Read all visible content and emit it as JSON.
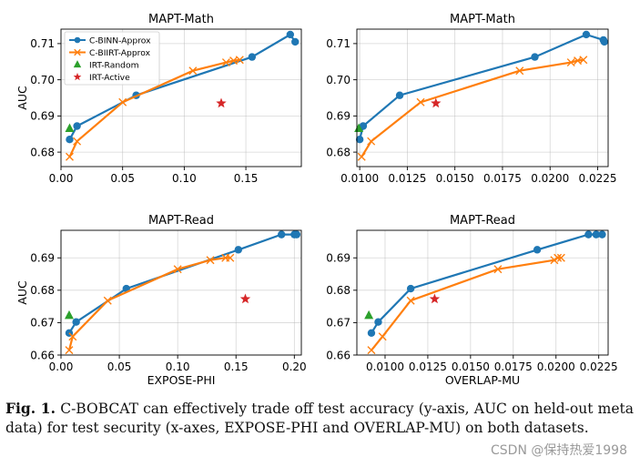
{
  "colors": {
    "binn": "#1f77b4",
    "biirt": "#ff7f0e",
    "random": "#2ca02c",
    "active": "#d62728"
  },
  "legend": {
    "items": [
      {
        "label": "C-BINN-Approx",
        "marker": "circle",
        "color": "#1f77b4"
      },
      {
        "label": "C-BIIRT-Approx",
        "marker": "x",
        "color": "#ff7f0e"
      },
      {
        "label": "IRT-Random",
        "marker": "triangle",
        "color": "#2ca02c"
      },
      {
        "label": "IRT-Active",
        "marker": "star",
        "color": "#d62728"
      }
    ],
    "placement": "upper-left of first panel"
  },
  "chart_data": [
    {
      "type": "line",
      "title": "MAPT-Math",
      "xlabel": "",
      "ylabel": "AUC",
      "xlim": [
        0.0,
        0.195
      ],
      "ylim": [
        0.676,
        0.714
      ],
      "xticks": [
        0.0,
        0.05,
        0.1,
        0.15
      ],
      "xtick_labels": [
        "0.00",
        "0.05",
        "0.10",
        "0.15"
      ],
      "yticks": [
        0.68,
        0.69,
        0.7,
        0.71
      ],
      "ytick_labels": [
        "0.68",
        "0.69",
        "0.70",
        "0.71"
      ],
      "grid": true,
      "series": [
        {
          "name": "C-BINN-Approx",
          "marker": "circle",
          "color": "#1f77b4",
          "x": [
            0.007,
            0.013,
            0.061,
            0.155,
            0.186,
            0.19
          ],
          "y": [
            0.6835,
            0.6872,
            0.6957,
            0.7063,
            0.7125,
            0.7105
          ]
        },
        {
          "name": "C-BIIRT-Approx",
          "marker": "x",
          "color": "#ff7f0e",
          "x": [
            0.007,
            0.013,
            0.05,
            0.107,
            0.134,
            0.14,
            0.145
          ],
          "y": [
            0.6787,
            0.683,
            0.6938,
            0.7025,
            0.7048,
            0.7053,
            0.7055
          ]
        },
        {
          "name": "IRT-Random",
          "marker": "triangle",
          "color": "#2ca02c",
          "x": [
            0.007
          ],
          "y": [
            0.6865
          ]
        },
        {
          "name": "IRT-Active",
          "marker": "star",
          "color": "#d62728",
          "x": [
            0.13
          ],
          "y": [
            0.6935
          ]
        }
      ]
    },
    {
      "type": "line",
      "title": "MAPT-Math",
      "xlabel": "",
      "ylabel": "",
      "xlim": [
        0.00985,
        0.02305
      ],
      "ylim": [
        0.676,
        0.714
      ],
      "xticks": [
        0.01,
        0.0125,
        0.015,
        0.0175,
        0.02,
        0.0225
      ],
      "xtick_labels": [
        "0.0100",
        "0.0125",
        "0.0150",
        "0.0175",
        "0.0200",
        "0.0225"
      ],
      "yticks": [
        0.68,
        0.69,
        0.7,
        0.71
      ],
      "ytick_labels": [
        "0.68",
        "0.69",
        "0.70",
        "0.71"
      ],
      "grid": true,
      "series": [
        {
          "name": "C-BINN-Approx",
          "marker": "circle",
          "color": "#1f77b4",
          "x": [
            0.01,
            0.01018,
            0.0121,
            0.0192,
            0.0219,
            0.0228,
            0.02285
          ],
          "y": [
            0.6835,
            0.6872,
            0.6957,
            0.7063,
            0.7125,
            0.711,
            0.7105
          ]
        },
        {
          "name": "C-BIIRT-Approx",
          "marker": "x",
          "color": "#ff7f0e",
          "x": [
            0.0101,
            0.0106,
            0.0132,
            0.0184,
            0.0211,
            0.02145,
            0.02175
          ],
          "y": [
            0.6787,
            0.683,
            0.6938,
            0.7025,
            0.7048,
            0.7053,
            0.7055
          ]
        },
        {
          "name": "IRT-Random",
          "marker": "triangle",
          "color": "#2ca02c",
          "x": [
            0.00995
          ],
          "y": [
            0.6865
          ]
        },
        {
          "name": "IRT-Active",
          "marker": "star",
          "color": "#d62728",
          "x": [
            0.014
          ],
          "y": [
            0.6935
          ]
        }
      ]
    },
    {
      "type": "line",
      "title": "MAPT-Read",
      "xlabel": "EXPOSE-PHI",
      "ylabel": "AUC",
      "xlim": [
        0.0,
        0.206
      ],
      "ylim": [
        0.66,
        0.6985
      ],
      "xticks": [
        0.0,
        0.05,
        0.1,
        0.15,
        0.2
      ],
      "xtick_labels": [
        "0.00",
        "0.05",
        "0.10",
        "0.15",
        "0.20"
      ],
      "yticks": [
        0.66,
        0.67,
        0.68,
        0.69
      ],
      "ytick_labels": [
        "0.66",
        "0.67",
        "0.68",
        "0.69"
      ],
      "grid": true,
      "series": [
        {
          "name": "C-BINN-Approx",
          "marker": "circle",
          "color": "#1f77b4",
          "x": [
            0.007,
            0.013,
            0.056,
            0.152,
            0.189,
            0.2,
            0.202
          ],
          "y": [
            0.6668,
            0.6702,
            0.6805,
            0.6925,
            0.6972,
            0.6972,
            0.6972
          ]
        },
        {
          "name": "C-BIIRT-Approx",
          "marker": "x",
          "color": "#ff7f0e",
          "x": [
            0.007,
            0.01,
            0.04,
            0.1,
            0.128,
            0.141,
            0.145
          ],
          "y": [
            0.6615,
            0.6657,
            0.6768,
            0.6865,
            0.6893,
            0.69,
            0.69
          ]
        },
        {
          "name": "IRT-Random",
          "marker": "triangle",
          "color": "#2ca02c",
          "x": [
            0.007
          ],
          "y": [
            0.6722
          ]
        },
        {
          "name": "IRT-Active",
          "marker": "star",
          "color": "#d62728",
          "x": [
            0.158
          ],
          "y": [
            0.6773
          ]
        }
      ]
    },
    {
      "type": "line",
      "title": "MAPT-Read",
      "xlabel": "OVERLAP-MU",
      "ylabel": "",
      "xlim": [
        0.00835,
        0.02305
      ],
      "ylim": [
        0.66,
        0.6985
      ],
      "xticks": [
        0.01,
        0.0125,
        0.015,
        0.0175,
        0.02,
        0.0225
      ],
      "xtick_labels": [
        "0.0100",
        "0.0125",
        "0.0150",
        "0.0175",
        "0.0200",
        "0.0225"
      ],
      "yticks": [
        0.66,
        0.67,
        0.68,
        0.69
      ],
      "ytick_labels": [
        "0.66",
        "0.67",
        "0.68",
        "0.69"
      ],
      "grid": true,
      "series": [
        {
          "name": "C-BINN-Approx",
          "marker": "circle",
          "color": "#1f77b4",
          "x": [
            0.0092,
            0.0096,
            0.0115,
            0.0189,
            0.0219,
            0.02235,
            0.0227
          ],
          "y": [
            0.6668,
            0.6702,
            0.6805,
            0.6925,
            0.6972,
            0.6972,
            0.6972
          ]
        },
        {
          "name": "C-BIIRT-Approx",
          "marker": "x",
          "color": "#ff7f0e",
          "x": [
            0.0092,
            0.00985,
            0.0115,
            0.0166,
            0.0199,
            0.0201,
            0.0203
          ],
          "y": [
            0.6615,
            0.6657,
            0.6768,
            0.6865,
            0.6893,
            0.69,
            0.69
          ]
        },
        {
          "name": "IRT-Random",
          "marker": "triangle",
          "color": "#2ca02c",
          "x": [
            0.00905
          ],
          "y": [
            0.6722
          ]
        },
        {
          "name": "IRT-Active",
          "marker": "star",
          "color": "#d62728",
          "x": [
            0.0129
          ],
          "y": [
            0.6773
          ]
        }
      ]
    }
  ],
  "caption": {
    "label": "Fig. 1.",
    "text": " C-BOBCAT can effectively trade off test accuracy (y-axis, AUC on held-out meta data) for test security (x-axes, EXPOSE-PHI and OVERLAP-MU) on both datasets."
  },
  "watermark": "CSDN @保持热爱1998"
}
